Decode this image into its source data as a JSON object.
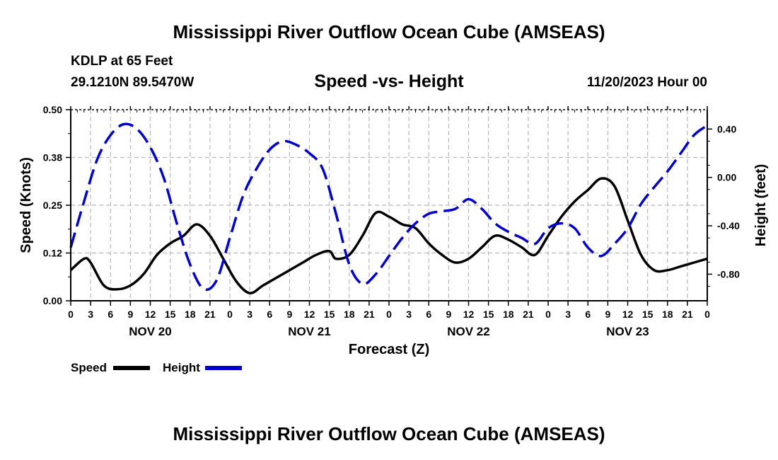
{
  "main_title": "Mississippi River Outflow Ocean Cube (AMSEAS)",
  "bottom_title": "Mississippi River Outflow Ocean Cube (AMSEAS)",
  "station": "KDLP at 65 Feet",
  "coords": "29.1210N  89.5470W",
  "datetime": "11/20/2023 Hour 00",
  "chart_data": {
    "type": "line",
    "title": "Speed -vs- Height",
    "xlabel": "Forecast (Z)",
    "ylabel_left": "Speed (Knots)",
    "ylabel_right": "Height (feet)",
    "x_hours_range": [
      0,
      96
    ],
    "x_tick_labels": [
      "0",
      "3",
      "6",
      "9",
      "12",
      "15",
      "18",
      "21",
      "0",
      "3",
      "6",
      "9",
      "12",
      "15",
      "18",
      "21",
      "0",
      "3",
      "6",
      "9",
      "12",
      "15",
      "18",
      "21",
      "0",
      "3",
      "6",
      "9",
      "12",
      "15",
      "18",
      "21",
      "0"
    ],
    "day_labels": [
      {
        "label": "NOV 20",
        "hour": 12
      },
      {
        "label": "NOV 21",
        "hour": 36
      },
      {
        "label": "NOV 22",
        "hour": 60
      },
      {
        "label": "NOV 23",
        "hour": 84
      }
    ],
    "ylim_left": [
      0,
      0.5
    ],
    "yticks_left": [
      0,
      0.125,
      0.25,
      0.375,
      0.5
    ],
    "yticks_left_labels": [
      "0.00",
      "0.12",
      "0.25",
      "0.38",
      "0.50"
    ],
    "ylim_right": [
      -1.02,
      0.56
    ],
    "yticks_right": [
      -0.8,
      -0.4,
      0,
      0.4
    ],
    "yticks_right_labels": [
      "-0.80",
      "-0.40",
      "0.00",
      "0.40"
    ],
    "grid": true,
    "legend_position": "bottom-left",
    "series": [
      {
        "name": "Speed",
        "axis": "left",
        "color": "#000000",
        "dash": "solid",
        "x": [
          0,
          2,
          3,
          5,
          7,
          9,
          11,
          13,
          15,
          17,
          19,
          21,
          23,
          25,
          27,
          29,
          31,
          33,
          35,
          37,
          39,
          40,
          42,
          44,
          46,
          48,
          50,
          52,
          54,
          56,
          58,
          60,
          62,
          64,
          66,
          68,
          70,
          72,
          74,
          76,
          78,
          80,
          82,
          84,
          86,
          88,
          90,
          92,
          94,
          96
        ],
        "values": [
          0.08,
          0.11,
          0.1,
          0.04,
          0.03,
          0.04,
          0.07,
          0.12,
          0.15,
          0.17,
          0.2,
          0.17,
          0.11,
          0.05,
          0.02,
          0.04,
          0.06,
          0.08,
          0.1,
          0.12,
          0.13,
          0.11,
          0.12,
          0.17,
          0.23,
          0.22,
          0.2,
          0.19,
          0.15,
          0.12,
          0.1,
          0.11,
          0.14,
          0.17,
          0.16,
          0.14,
          0.12,
          0.17,
          0.22,
          0.26,
          0.29,
          0.32,
          0.3,
          0.21,
          0.12,
          0.08,
          0.08,
          0.09,
          0.1,
          0.11
        ]
      },
      {
        "name": "Height",
        "axis": "right",
        "color": "#0000cc",
        "dash": "dashed",
        "x": [
          0,
          2,
          4,
          6,
          8,
          10,
          12,
          14,
          16,
          18,
          20,
          22,
          24,
          26,
          28,
          30,
          32,
          34,
          36,
          38,
          40,
          42,
          44,
          46,
          48,
          50,
          52,
          54,
          56,
          58,
          60,
          62,
          64,
          66,
          68,
          70,
          72,
          74,
          76,
          78,
          80,
          82,
          84,
          86,
          88,
          90,
          92,
          94,
          96
        ],
        "values": [
          -0.58,
          -0.2,
          0.15,
          0.35,
          0.44,
          0.4,
          0.25,
          0.0,
          -0.38,
          -0.72,
          -0.92,
          -0.85,
          -0.5,
          -0.15,
          0.07,
          0.23,
          0.3,
          0.27,
          0.2,
          0.07,
          -0.3,
          -0.72,
          -0.88,
          -0.8,
          -0.65,
          -0.5,
          -0.38,
          -0.3,
          -0.28,
          -0.26,
          -0.18,
          -0.26,
          -0.38,
          -0.45,
          -0.5,
          -0.55,
          -0.42,
          -0.38,
          -0.42,
          -0.58,
          -0.65,
          -0.55,
          -0.42,
          -0.22,
          -0.08,
          0.05,
          0.2,
          0.35,
          0.43
        ]
      }
    ]
  }
}
